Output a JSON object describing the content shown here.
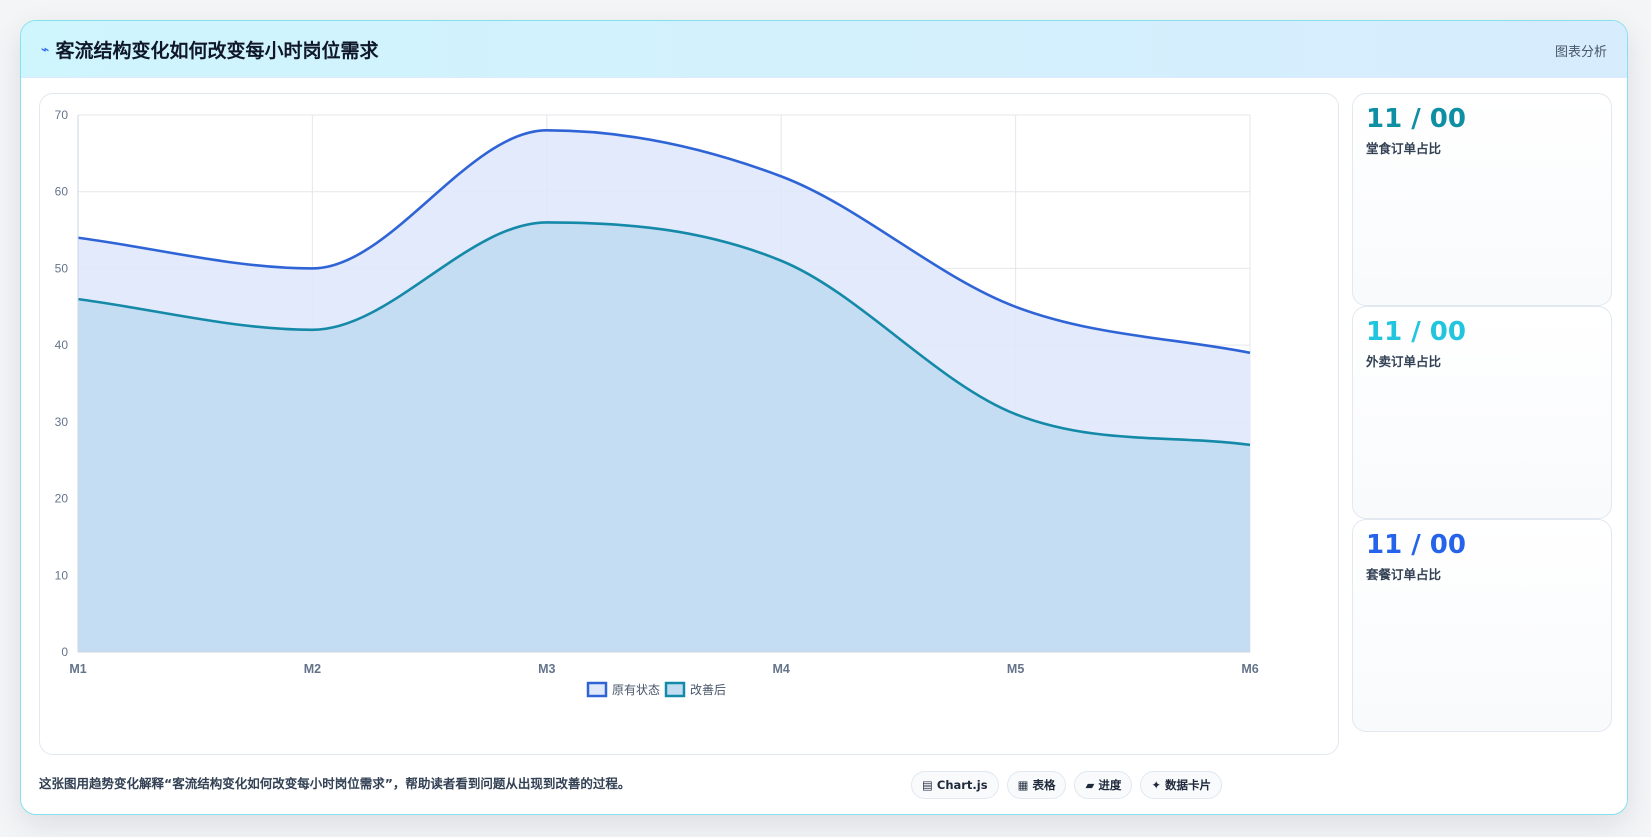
{
  "header": {
    "icon": "chart-line-icon",
    "title": "客流结构变化如何改变每小时岗位需求",
    "tag": "图表分析"
  },
  "chart_data": {
    "type": "area",
    "categories": [
      "M1",
      "M2",
      "M3",
      "M4",
      "M5",
      "M6"
    ],
    "series": [
      {
        "name": "原有状态",
        "values": [
          54,
          50,
          68,
          62,
          45,
          39
        ],
        "color": "#2f64d6",
        "fill": "#dfe8fb"
      },
      {
        "name": "改善后",
        "values": [
          46,
          42,
          56,
          51,
          31,
          27
        ],
        "color": "#1489a8",
        "fill": "#c2dcf1"
      }
    ],
    "ylim": [
      0,
      70
    ],
    "yticks": [
      0,
      10,
      20,
      30,
      40,
      50,
      60,
      70
    ],
    "grid": true,
    "legend": "bottom"
  },
  "stats": [
    {
      "value": "11 / 00",
      "label": "堂食订单占比",
      "color": "#0e8fa3"
    },
    {
      "value": "11 / 00",
      "label": "外卖订单占比",
      "color": "#22c5de"
    },
    {
      "value": "11 / 00",
      "label": "套餐订单占比",
      "color": "#2563eb"
    }
  ],
  "footer": {
    "description": "这张图用趋势变化解释“客流结构变化如何改变每小时岗位需求”，帮助读者看到问题从出现到改善的过程。",
    "chips": [
      {
        "icon": "bar-chart-icon",
        "glyph": "▤",
        "label": "Chart.js"
      },
      {
        "icon": "table-icon",
        "glyph": "▦",
        "label": "表格"
      },
      {
        "icon": "progress-icon",
        "glyph": "▰",
        "label": "进度"
      },
      {
        "icon": "sparkle-icon",
        "glyph": "✦",
        "label": "数据卡片"
      }
    ]
  }
}
